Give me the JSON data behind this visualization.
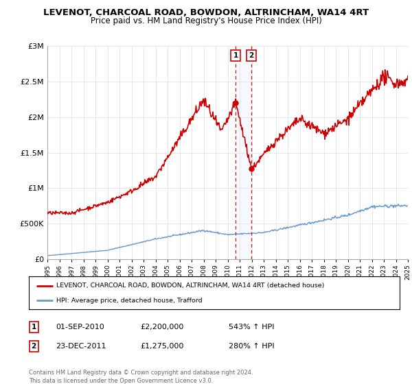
{
  "title": "LEVENOT, CHARCOAL ROAD, BOWDON, ALTRINCHAM, WA14 4RT",
  "subtitle": "Price paid vs. HM Land Registry's House Price Index (HPI)",
  "legend_line1": "LEVENOT, CHARCOAL ROAD, BOWDON, ALTRINCHAM, WA14 4RT (detached house)",
  "legend_line2": "HPI: Average price, detached house, Trafford",
  "transaction1_label": "1",
  "transaction1_date": "01-SEP-2010",
  "transaction1_price": "£2,200,000",
  "transaction1_hpi": "543% ↑ HPI",
  "transaction2_label": "2",
  "transaction2_date": "23-DEC-2011",
  "transaction2_price": "£1,275,000",
  "transaction2_hpi": "280% ↑ HPI",
  "footer": "Contains HM Land Registry data © Crown copyright and database right 2024.\nThis data is licensed under the Open Government Licence v3.0.",
  "house_color": "#cc0000",
  "hpi_color": "#6699cc",
  "shaded_region_color": "#d8eaf8",
  "point1_date_num": 2010.67,
  "point1_value": 2200000,
  "point2_date_num": 2011.97,
  "point2_value": 1275000,
  "ylim": [
    0,
    3000000
  ],
  "xlim_start": 1995,
  "xlim_end": 2025
}
